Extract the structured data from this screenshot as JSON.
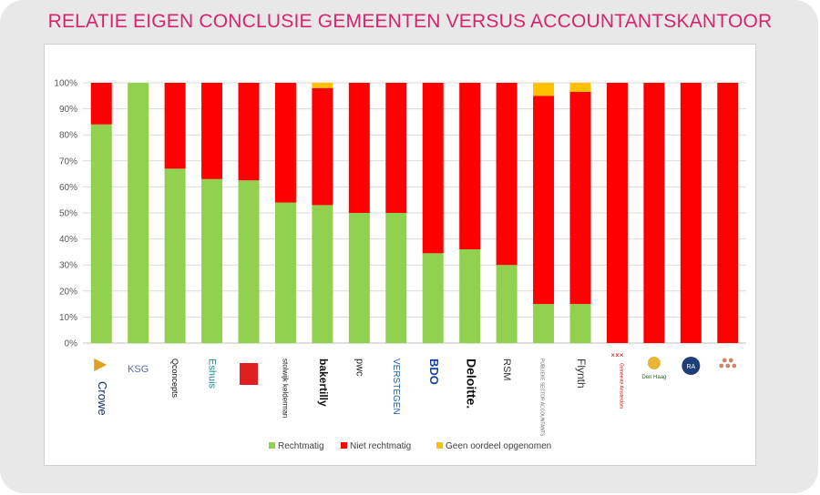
{
  "header": {
    "title": "RELATIE EIGEN CONCLUSIE GEMEENTEN VERSUS ACCOUNTANTSKANTOOR"
  },
  "chart_data": {
    "type": "bar",
    "stacked": true,
    "title": "RELATIE EIGEN CONCLUSIE GEMEENTEN VERSUS ACCOUNTANTSKANTOOR",
    "xlabel": "",
    "ylabel": "",
    "ylim": [
      0,
      100
    ],
    "yticks": [
      "0%",
      "10%",
      "20%",
      "30%",
      "40%",
      "50%",
      "60%",
      "70%",
      "80%",
      "90%",
      "100%"
    ],
    "grid": true,
    "legend_position": "bottom",
    "categories": [
      "Crowe",
      "KSG",
      "Qconcepts",
      "Eshuis",
      "logo-red",
      "stolwijk kelderman",
      "bakertilly",
      "pwc",
      "VERSTEGEN",
      "BDO",
      "Deloitte.",
      "RSM",
      "Publieke Sector Accountants",
      "Flynth",
      "Gemeente Amsterdam",
      "Den Haag",
      "RA",
      "logo-figures"
    ],
    "logo_text": [
      "Crowe",
      "KSG",
      "Qconcepts",
      "Eshuis",
      "",
      "stolwijk kelderman",
      "bakertilly",
      "pwc",
      "VERSTEGEN",
      "BDO",
      "Deloitte.",
      "RSM",
      "PUBLIEKE SECTOR ACCOUNTANTS",
      "Flynth",
      "Gemeente Amsterdam",
      "Den Haag",
      "RA",
      ""
    ],
    "series": [
      {
        "name": "Rechtmatig",
        "color": "#92d050",
        "values": [
          84,
          100,
          67,
          63,
          62.5,
          54,
          53,
          50,
          50,
          34.5,
          36,
          30,
          15,
          15,
          0,
          0,
          0,
          0
        ]
      },
      {
        "name": "Niet rechtmatig",
        "color": "#ff0000",
        "values": [
          16,
          0,
          33,
          37,
          37.5,
          46,
          45,
          50,
          50,
          65.5,
          64,
          70,
          80,
          81.5,
          100,
          100,
          100,
          100
        ]
      },
      {
        "name": "Geen oordeel opgenomen",
        "color": "#ffc000",
        "values": [
          0,
          0,
          0,
          0,
          0,
          0,
          2,
          0,
          0,
          0,
          0,
          0,
          5,
          3.5,
          0,
          0,
          0,
          0
        ]
      }
    ]
  }
}
